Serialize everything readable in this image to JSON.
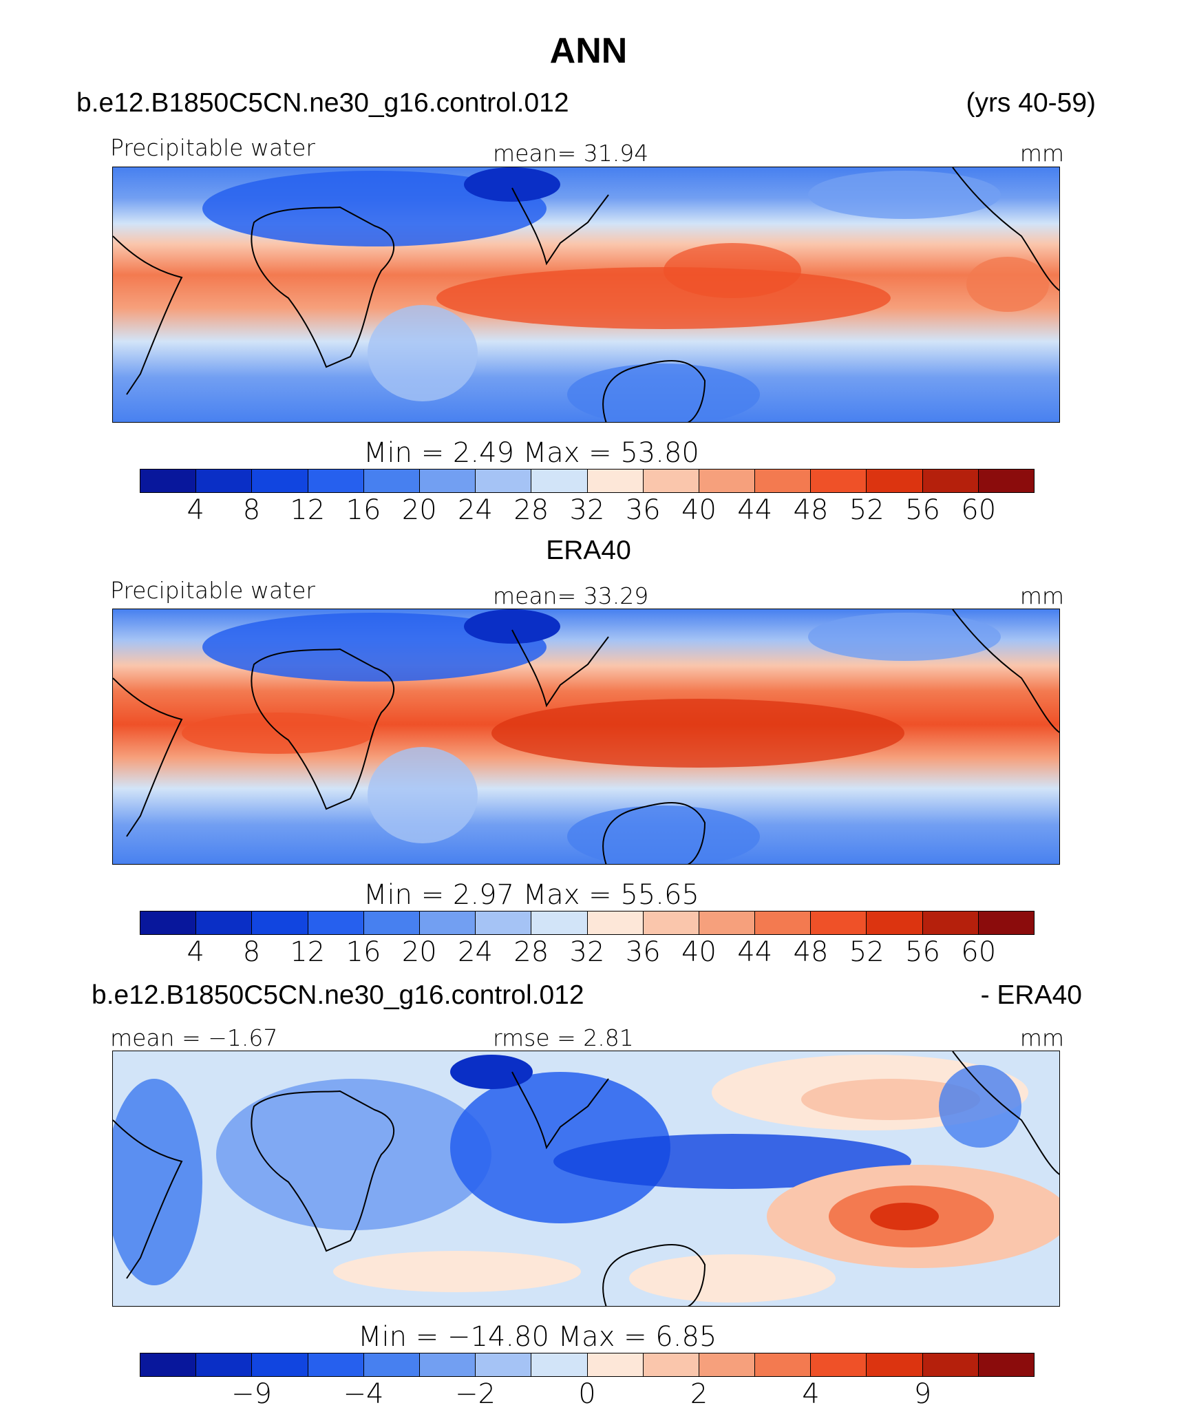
{
  "title": "ANN",
  "panel1": {
    "case": "b.e12.B1850C5CN.ne30_g16.control.012",
    "years": "(yrs 40-59)",
    "left": "Precipitable water",
    "center": "mean=   31.94",
    "right": "mm",
    "minmax": "Min =     2.49  Max =   53.80"
  },
  "panel2": {
    "heading": "ERA40",
    "left": "Precipitable water",
    "center": "mean=   33.29",
    "right": "mm",
    "minmax": "Min =     2.97  Max =   55.65"
  },
  "panel3": {
    "case": "b.e12.B1850C5CN.ne30_g16.control.012",
    "suffix": "- ERA40",
    "left": "mean =   −1.67",
    "center": "rmse =     2.81",
    "right": "mm",
    "minmax": "Min = −14.80  Max =     6.85"
  },
  "colorbar_abs": {
    "colors": [
      "#08179c",
      "#0a2fc6",
      "#1145e0",
      "#2660ee",
      "#4780f0",
      "#729ff2",
      "#a5c3f5",
      "#d2e4f8",
      "#fde7d8",
      "#fac6ac",
      "#f6a07c",
      "#f37a50",
      "#ef5128",
      "#dc3410",
      "#b5200c",
      "#8b0c0c"
    ],
    "labels": [
      "4",
      "8",
      "12",
      "16",
      "20",
      "24",
      "28",
      "32",
      "36",
      "40",
      "44",
      "48",
      "52",
      "56",
      "60"
    ]
  },
  "colorbar_diff": {
    "colors": [
      "#08179c",
      "#0a2fc6",
      "#1145e0",
      "#2660ee",
      "#4780f0",
      "#729ff2",
      "#a5c3f5",
      "#d2e4f8",
      "#fde7d8",
      "#fac6ac",
      "#f6a07c",
      "#f37a50",
      "#ef5128",
      "#dc3410",
      "#b5200c",
      "#8b0c0c"
    ],
    "labels": [
      "−9",
      "−4",
      "−2",
      "0",
      "2",
      "4",
      "9"
    ],
    "label_boundaries": [
      2,
      4,
      6,
      8,
      10,
      12,
      14
    ]
  }
}
